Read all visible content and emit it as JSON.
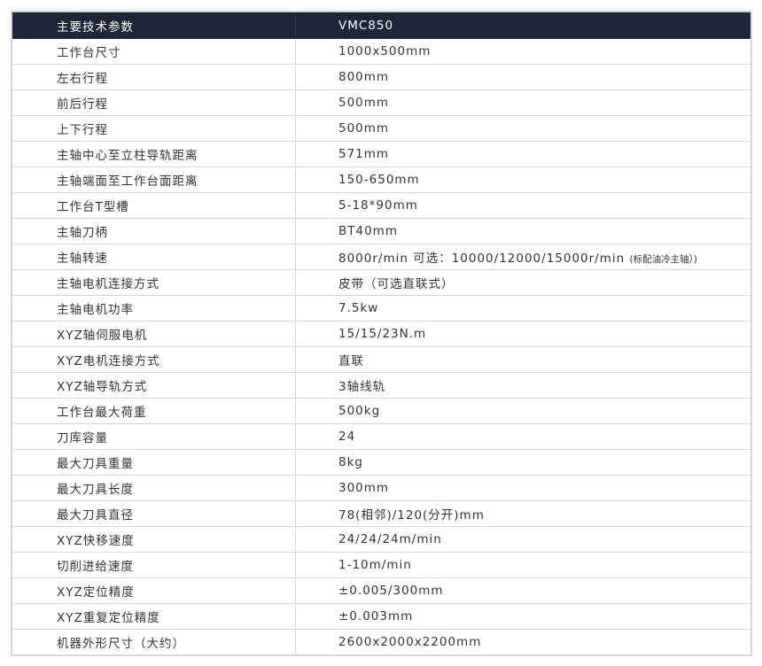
{
  "header": {
    "param": "主要技术参数",
    "model": "VMC850"
  },
  "rows": [
    {
      "k": "工作台尺寸",
      "v": "1000x500mm"
    },
    {
      "k": "左右行程",
      "v": "800mm"
    },
    {
      "k": "前后行程",
      "v": "500mm"
    },
    {
      "k": "上下行程",
      "v": "500mm"
    },
    {
      "k": "主轴中心至立柱导轨距离",
      "v": "571mm"
    },
    {
      "k": "主轴端面至工作台面距离",
      "v": "150-650mm"
    },
    {
      "k": "工作台T型槽",
      "v": "5-18*90mm"
    },
    {
      "k": "主轴刀柄",
      "v": "BT40mm"
    },
    {
      "k": "主轴转速",
      "v": "8000r/min 可选：10000/12000/15000r/min",
      "note": "(标配油冷主轴）)"
    },
    {
      "k": "主轴电机连接方式",
      "v": "皮带（可选直联式）"
    },
    {
      "k": "主轴电机功率",
      "v": "7.5kw"
    },
    {
      "k": "XYZ轴伺服电机",
      "v": "15/15/23N.m"
    },
    {
      "k": "XYZ电机连接方式",
      "v": "直联"
    },
    {
      "k": "XYZ轴导轨方式",
      "v": "3轴线轨"
    },
    {
      "k": "工作台最大荷重",
      "v": "500kg"
    },
    {
      "k": "刀库容量",
      "v": "24"
    },
    {
      "k": "最大刀具重量",
      "v": "8kg"
    },
    {
      "k": "最大刀具长度",
      "v": "300mm"
    },
    {
      "k": "最大刀具直径",
      "v": "78(相邻)/120(分开)mm"
    },
    {
      "k": "XYZ快移速度",
      "v": "24/24/24m/min"
    },
    {
      "k": "切削进给速度",
      "v": "1-10m/min"
    },
    {
      "k": "XYZ定位精度",
      "v": "±0.005/300mm"
    },
    {
      "k": "XYZ重复定位精度",
      "v": "±0.003mm"
    },
    {
      "k": "机器外形尺寸（大约）",
      "v": "2600x2000x2200mm"
    }
  ]
}
